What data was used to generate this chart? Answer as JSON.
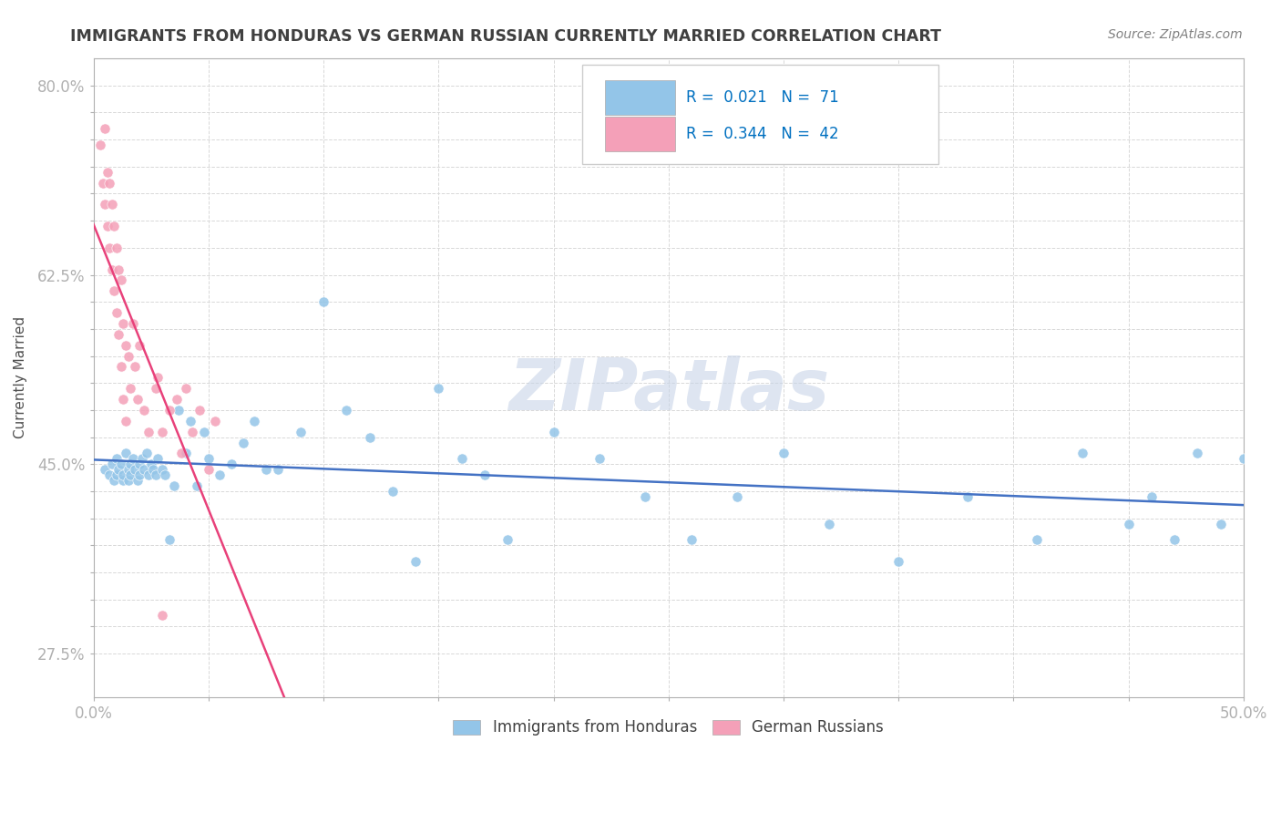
{
  "title": "IMMIGRANTS FROM HONDURAS VS GERMAN RUSSIAN CURRENTLY MARRIED CORRELATION CHART",
  "source_text": "Source: ZipAtlas.com",
  "ylabel_text": "Currently Married",
  "xlim": [
    0.0,
    0.5
  ],
  "ylim": [
    0.235,
    0.825
  ],
  "series1_label": "Immigrants from Honduras",
  "series1_color": "#93c5e8",
  "series1_edge": "white",
  "series1_R": 0.021,
  "series1_N": 71,
  "series2_label": "German Russians",
  "series2_color": "#f4a0b8",
  "series2_edge": "white",
  "series2_R": 0.344,
  "series2_N": 42,
  "trend1_color": "#4472c4",
  "trend2_color": "#e8417a",
  "watermark": "ZIPatlas",
  "watermark_color": "#c8d4e8",
  "grid_color": "#d8d8d8",
  "background_color": "#ffffff",
  "title_color": "#404040",
  "blue_x": [
    0.005,
    0.007,
    0.008,
    0.009,
    0.01,
    0.01,
    0.011,
    0.012,
    0.013,
    0.013,
    0.014,
    0.015,
    0.015,
    0.016,
    0.016,
    0.017,
    0.018,
    0.019,
    0.02,
    0.02,
    0.021,
    0.022,
    0.023,
    0.024,
    0.025,
    0.026,
    0.027,
    0.028,
    0.03,
    0.031,
    0.033,
    0.035,
    0.037,
    0.04,
    0.042,
    0.045,
    0.048,
    0.05,
    0.055,
    0.06,
    0.065,
    0.07,
    0.075,
    0.08,
    0.09,
    0.1,
    0.11,
    0.12,
    0.13,
    0.14,
    0.15,
    0.16,
    0.17,
    0.18,
    0.2,
    0.22,
    0.24,
    0.26,
    0.28,
    0.3,
    0.32,
    0.35,
    0.38,
    0.41,
    0.43,
    0.45,
    0.46,
    0.47,
    0.48,
    0.49,
    0.5
  ],
  "blue_y": [
    0.445,
    0.44,
    0.45,
    0.435,
    0.455,
    0.44,
    0.445,
    0.45,
    0.435,
    0.44,
    0.46,
    0.445,
    0.435,
    0.45,
    0.44,
    0.455,
    0.445,
    0.435,
    0.45,
    0.44,
    0.455,
    0.445,
    0.46,
    0.44,
    0.45,
    0.445,
    0.44,
    0.455,
    0.445,
    0.44,
    0.38,
    0.43,
    0.5,
    0.46,
    0.49,
    0.43,
    0.48,
    0.455,
    0.44,
    0.45,
    0.47,
    0.49,
    0.445,
    0.445,
    0.48,
    0.6,
    0.5,
    0.475,
    0.425,
    0.36,
    0.52,
    0.455,
    0.44,
    0.38,
    0.48,
    0.455,
    0.42,
    0.38,
    0.42,
    0.46,
    0.395,
    0.36,
    0.42,
    0.38,
    0.46,
    0.395,
    0.42,
    0.38,
    0.46,
    0.395,
    0.455
  ],
  "pink_x": [
    0.003,
    0.004,
    0.005,
    0.005,
    0.006,
    0.006,
    0.007,
    0.007,
    0.008,
    0.008,
    0.009,
    0.009,
    0.01,
    0.01,
    0.011,
    0.011,
    0.012,
    0.012,
    0.013,
    0.013,
    0.014,
    0.014,
    0.015,
    0.016,
    0.017,
    0.018,
    0.019,
    0.02,
    0.022,
    0.024,
    0.027,
    0.03,
    0.033,
    0.036,
    0.038,
    0.04,
    0.043,
    0.046,
    0.05,
    0.053,
    0.03,
    0.028
  ],
  "pink_y": [
    0.745,
    0.71,
    0.76,
    0.69,
    0.72,
    0.67,
    0.71,
    0.65,
    0.69,
    0.63,
    0.67,
    0.61,
    0.65,
    0.59,
    0.63,
    0.57,
    0.62,
    0.54,
    0.58,
    0.51,
    0.56,
    0.49,
    0.55,
    0.52,
    0.58,
    0.54,
    0.51,
    0.56,
    0.5,
    0.48,
    0.52,
    0.48,
    0.5,
    0.51,
    0.46,
    0.52,
    0.48,
    0.5,
    0.445,
    0.49,
    0.31,
    0.53
  ]
}
